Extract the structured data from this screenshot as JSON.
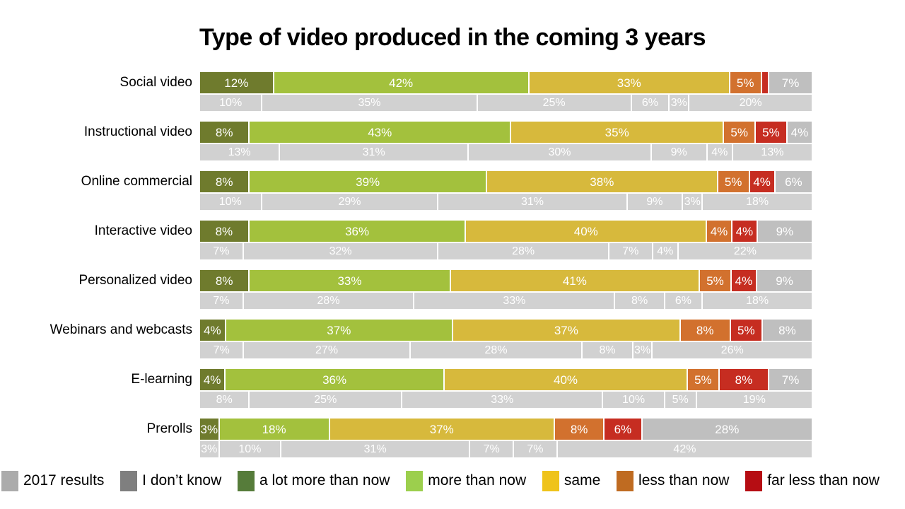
{
  "title": "Type of video produced in the coming 3 years",
  "colors": {
    "bar_series": [
      "#6f7b2d",
      "#a3c13d",
      "#d7b93c",
      "#d2712e",
      "#c62d21",
      "#bfbfbf"
    ],
    "bar_2017": "#d1d1d1",
    "segment_label_text": "#ffffff",
    "title_text": "#000000"
  },
  "legend": [
    {
      "label": "2017 results",
      "color": "#ababab"
    },
    {
      "label": "I don’t know",
      "color": "#7f7f7f"
    },
    {
      "label": "a lot more than now",
      "color": "#567c3a"
    },
    {
      "label": "more than now",
      "color": "#9ccf4d"
    },
    {
      "label": "same",
      "color": "#efc31a"
    },
    {
      "label": "less than now",
      "color": "#bf6b21"
    },
    {
      "label": "far less than now",
      "color": "#b60d13"
    }
  ],
  "chart_data": {
    "type": "bar",
    "stacked": true,
    "orientation": "horizontal",
    "value_unit": "%",
    "title": "Type of video produced in the coming 3 years",
    "series_order": [
      "a lot more than now",
      "more than now",
      "same",
      "less than now",
      "far less than now",
      "I don't know"
    ],
    "comparison_series": "2017 results",
    "rows": [
      {
        "category": "Social video",
        "now": {
          "values": [
            12,
            42,
            33,
            5,
            1,
            7
          ],
          "labels": [
            "12%",
            "42%",
            "33%",
            "5%",
            "",
            "7%"
          ]
        },
        "y2017": {
          "values": [
            10,
            35,
            25,
            6,
            3,
            20
          ],
          "labels": [
            "10%",
            "35%",
            "25%",
            "6%",
            "3%",
            "20%"
          ]
        }
      },
      {
        "category": "Instructional video",
        "now": {
          "values": [
            8,
            43,
            35,
            5,
            5,
            4
          ],
          "labels": [
            "8%",
            "43%",
            "35%",
            "5%",
            "5%",
            "4%"
          ]
        },
        "y2017": {
          "values": [
            13,
            31,
            30,
            9,
            4,
            13
          ],
          "labels": [
            "13%",
            "31%",
            "30%",
            "9%",
            "4%",
            "13%"
          ]
        }
      },
      {
        "category": "Online commercial",
        "now": {
          "values": [
            8,
            39,
            38,
            5,
            4,
            6
          ],
          "labels": [
            "8%",
            "39%",
            "38%",
            "5%",
            "4%",
            "6%"
          ]
        },
        "y2017": {
          "values": [
            10,
            29,
            31,
            9,
            3,
            18
          ],
          "labels": [
            "10%",
            "29%",
            "31%",
            "9%",
            "3%",
            "18%"
          ]
        }
      },
      {
        "category": "Interactive video",
        "now": {
          "values": [
            8,
            36,
            40,
            4,
            4,
            9
          ],
          "labels": [
            "8%",
            "36%",
            "40%",
            "4%",
            "4%",
            "9%"
          ]
        },
        "y2017": {
          "values": [
            7,
            32,
            28,
            7,
            4,
            22
          ],
          "labels": [
            "7%",
            "32%",
            "28%",
            "7%",
            "4%",
            "22%"
          ]
        }
      },
      {
        "category": "Personalized video",
        "now": {
          "values": [
            8,
            33,
            41,
            5,
            4,
            9
          ],
          "labels": [
            "8%",
            "33%",
            "41%",
            "5%",
            "4%",
            "9%"
          ]
        },
        "y2017": {
          "values": [
            7,
            28,
            33,
            8,
            6,
            18
          ],
          "labels": [
            "7%",
            "28%",
            "33%",
            "8%",
            "6%",
            "18%"
          ]
        }
      },
      {
        "category": "Webinars and webcasts",
        "now": {
          "values": [
            4,
            37,
            37,
            8,
            5,
            8
          ],
          "labels": [
            "4%",
            "37%",
            "37%",
            "8%",
            "5%",
            "8%"
          ]
        },
        "y2017": {
          "values": [
            7,
            27,
            28,
            8,
            3,
            26
          ],
          "labels": [
            "7%",
            "27%",
            "28%",
            "8%",
            "3%",
            "26%"
          ]
        }
      },
      {
        "category": "E-learning",
        "now": {
          "values": [
            4,
            36,
            40,
            5,
            8,
            7
          ],
          "labels": [
            "4%",
            "36%",
            "40%",
            "5%",
            "8%",
            "7%"
          ]
        },
        "y2017": {
          "values": [
            8,
            25,
            33,
            10,
            5,
            19
          ],
          "labels": [
            "8%",
            "25%",
            "33%",
            "10%",
            "5%",
            "19%"
          ]
        }
      },
      {
        "category": "Prerolls",
        "now": {
          "values": [
            3,
            18,
            37,
            8,
            6,
            28
          ],
          "labels": [
            "3%",
            "18%",
            "37%",
            "8%",
            "6%",
            "28%"
          ]
        },
        "y2017": {
          "values": [
            3,
            10,
            31,
            7,
            7,
            42
          ],
          "labels": [
            "3%",
            "10%",
            "31%",
            "7%",
            "7%",
            "42%"
          ]
        }
      }
    ]
  }
}
